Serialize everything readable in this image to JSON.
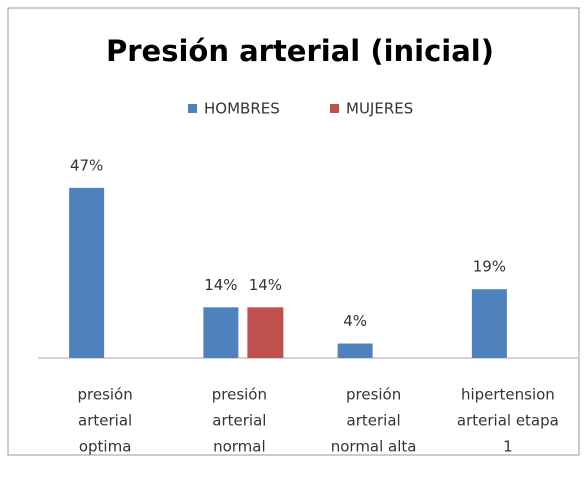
{
  "chart_data": {
    "type": "bar",
    "title": "Presión arterial (inicial)",
    "categories": [
      [
        "presión",
        "arterial",
        "optima"
      ],
      [
        "presión",
        "arterial",
        "normal"
      ],
      [
        "presión",
        "arterial",
        "normal alta"
      ],
      [
        "hipertension",
        "arterial etapa",
        "1"
      ]
    ],
    "series": [
      {
        "name": "HOMBRES",
        "color": "#4f81bd",
        "values": [
          47,
          14,
          4,
          19
        ],
        "value_labels": [
          "47%",
          "14%",
          "4%",
          "19%"
        ]
      },
      {
        "name": "MUJERES",
        "color": "#c0504d",
        "values": [
          null,
          14,
          null,
          null
        ],
        "value_labels": [
          null,
          "14%",
          null,
          null
        ]
      }
    ]
  }
}
